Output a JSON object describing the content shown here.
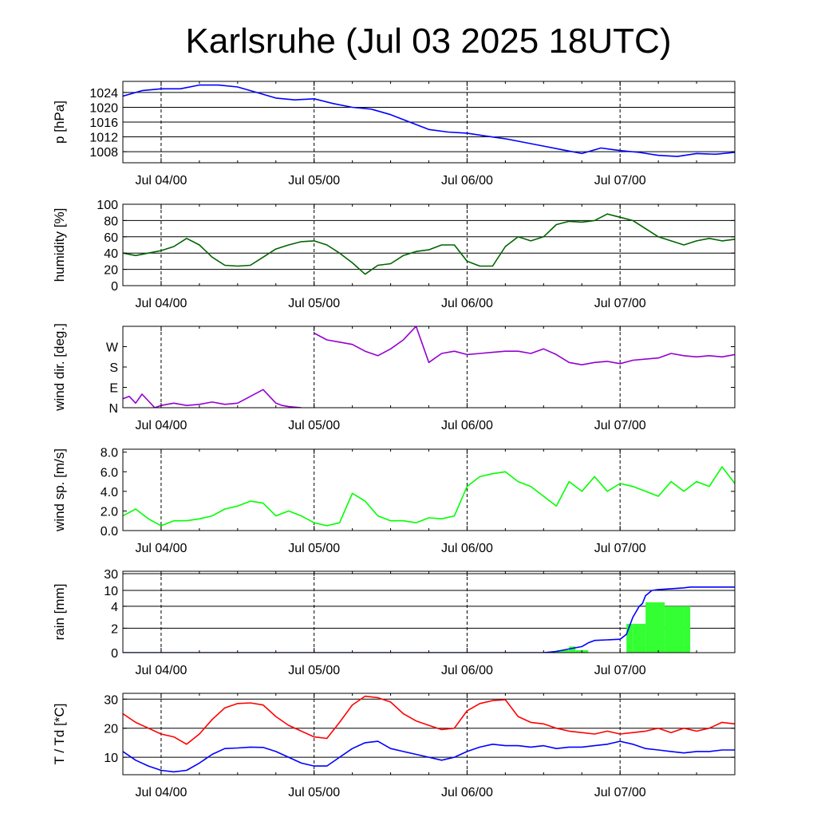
{
  "chart_data": {
    "type": "line",
    "title": "Karlsruhe (Jul 03 2025 18UTC)",
    "x_tick_labels": [
      "Jul 04/00",
      "Jul 05/00",
      "Jul 06/00",
      "Jul 07/00"
    ],
    "x_range_hours_from_jul03_18utc": [
      0,
      96
    ],
    "colors": {
      "pressure": "#0000ff",
      "humidity": "#006400",
      "wind_dir": "#9400d3",
      "wind_speed": "#00ff00",
      "rain_bar": "#33ff33",
      "rain_cum": "#0000ff",
      "temperature": "#ff0000",
      "dewpoint": "#0000ff"
    },
    "panels": [
      {
        "id": "pressure",
        "ylabel": "p [hPa]",
        "ylim": [
          1005,
          1027
        ],
        "yticks": [
          "1024",
          "1020",
          "1016",
          "1012",
          "1008"
        ],
        "ytick_values": [
          1024,
          1020,
          1016,
          1012,
          1008
        ],
        "grid": true,
        "series": [
          {
            "key": "pressure",
            "type": "line",
            "x": [
              0,
              3,
              6,
              9,
              12,
              15,
              18,
              21,
              24,
              27,
              30,
              33,
              36,
              39,
              42,
              45,
              48,
              51,
              54,
              57,
              60,
              63,
              66,
              69,
              72,
              75,
              78,
              81,
              84,
              87,
              90,
              93,
              96
            ],
            "y": [
              1023,
              1024.5,
              1025,
              1025,
              1026,
              1026,
              1025.5,
              1024,
              1022.5,
              1022,
              1022.3,
              1021,
              1020,
              1019.5,
              1018,
              1016,
              1014,
              1013.3,
              1013,
              1012.2,
              1011.5,
              1010.5,
              1009.5,
              1008.5,
              1007.5,
              1009,
              1008.3,
              1007.8,
              1007,
              1006.7,
              1007.5,
              1007.3,
              1007.8
            ]
          }
        ]
      },
      {
        "id": "humidity",
        "ylabel": "humidity [%]",
        "ylim": [
          0,
          100
        ],
        "yticks": [
          "100",
          "80",
          "60",
          "40",
          "20",
          "0"
        ],
        "ytick_values": [
          100,
          80,
          60,
          40,
          20,
          0
        ],
        "grid": true,
        "series": [
          {
            "key": "humidity",
            "type": "line",
            "x": [
              0,
              2,
              4,
              6,
              8,
              10,
              12,
              14,
              16,
              18,
              20,
              22,
              24,
              26,
              28,
              30,
              32,
              34,
              36,
              38,
              40,
              42,
              44,
              46,
              48,
              50,
              52,
              54,
              56,
              58,
              60,
              62,
              64,
              66,
              68,
              70,
              72,
              74,
              76,
              78,
              80,
              82,
              84,
              86,
              88,
              90,
              92,
              94,
              96
            ],
            "y": [
              40,
              37,
              40,
              43,
              48,
              58,
              50,
              35,
              25,
              24,
              25,
              35,
              45,
              50,
              54,
              55,
              50,
              40,
              28,
              14,
              25,
              27,
              37,
              42,
              44,
              50,
              50,
              30,
              24,
              24,
              48,
              60,
              55,
              60,
              75,
              79,
              78,
              80,
              88,
              84,
              80,
              70,
              60,
              55,
              50,
              55,
              58,
              55,
              57
            ]
          }
        ]
      },
      {
        "id": "wind_dir",
        "ylabel": "wind dir. [deg.]",
        "ylim": [
          0,
          360
        ],
        "yticks": [
          "W",
          "S",
          "E",
          "N"
        ],
        "ytick_values": [
          270,
          180,
          90,
          0
        ],
        "grid": false,
        "series": [
          {
            "key": "wind_dir",
            "type": "line",
            "x": [
              0,
              1,
              2,
              3,
              4,
              5,
              6,
              8,
              10,
              12,
              14,
              16,
              18,
              20,
              22,
              24,
              25,
              26,
              28,
              30,
              32,
              34,
              36,
              38,
              40,
              42,
              44,
              46,
              48,
              50,
              52,
              54,
              56,
              58,
              60,
              62,
              64,
              66,
              68,
              70,
              72,
              74,
              76,
              78,
              80,
              82,
              84,
              86,
              88,
              90,
              92,
              94,
              96
            ],
            "y": [
              40,
              50,
              20,
              60,
              30,
              0,
              10,
              20,
              10,
              15,
              25,
              15,
              20,
              50,
              80,
              20,
              10,
              5,
              0,
              330,
              300,
              290,
              280,
              250,
              230,
              260,
              300,
              360,
              200,
              240,
              250,
              235,
              240,
              245,
              250,
              250,
              240,
              260,
              235,
              200,
              190,
              200,
              205,
              195,
              210,
              215,
              220,
              240,
              230,
              225,
              230,
              225,
              235
            ]
          }
        ]
      },
      {
        "id": "wind_speed",
        "ylabel": "wind sp. [m/s]",
        "ylim": [
          0,
          8.3
        ],
        "yticks": [
          "8.0",
          "6.0",
          "4.0",
          "2.0",
          "0.0"
        ],
        "ytick_values": [
          8,
          6,
          4,
          2,
          0
        ],
        "grid": false,
        "series": [
          {
            "key": "wind_speed",
            "type": "line",
            "x": [
              0,
              2,
              4,
              6,
              8,
              10,
              12,
              14,
              16,
              18,
              20,
              22,
              24,
              26,
              28,
              30,
              32,
              34,
              36,
              38,
              40,
              42,
              44,
              46,
              48,
              50,
              52,
              54,
              56,
              58,
              60,
              62,
              64,
              66,
              68,
              70,
              72,
              74,
              76,
              78,
              80,
              82,
              84,
              86,
              88,
              90,
              92,
              94,
              96
            ],
            "y": [
              1.5,
              2.2,
              1.2,
              0.5,
              1.0,
              1.0,
              1.2,
              1.5,
              2.2,
              2.5,
              3.0,
              2.8,
              1.5,
              2.0,
              1.5,
              0.8,
              0.5,
              0.8,
              3.8,
              3.0,
              1.5,
              1.0,
              1.0,
              0.8,
              1.3,
              1.2,
              1.5,
              4.5,
              5.5,
              5.8,
              6.0,
              5.0,
              4.5,
              3.5,
              2.5,
              5.0,
              4.0,
              5.5,
              4.0,
              4.8,
              4.5,
              4.0,
              3.5,
              5.0,
              4.0,
              5.0,
              4.5,
              6.5,
              4.8
            ]
          }
        ]
      },
      {
        "id": "rain",
        "ylabel": "rain [mm]",
        "ylim": [
          0,
          30
        ],
        "yticks": [
          "30",
          "10",
          "4",
          "2",
          "0"
        ],
        "ytick_values": [
          30,
          10,
          4,
          2,
          0
        ],
        "grid": true,
        "scale": "custom-nonlinear",
        "series": [
          {
            "key": "rain_bar",
            "type": "bar",
            "bars": [
              {
                "x0": 68,
                "x1": 70,
                "v": 0.2
              },
              {
                "x0": 70,
                "x1": 71,
                "v": 0.5
              },
              {
                "x0": 71,
                "x1": 73,
                "v": 0.2
              },
              {
                "x0": 79,
                "x1": 80,
                "v": 2.4
              },
              {
                "x0": 80,
                "x1": 82,
                "v": 2.4
              },
              {
                "x0": 82,
                "x1": 85,
                "v": 5.5
              },
              {
                "x0": 85,
                "x1": 88,
                "v": 4.0
              },
              {
                "x0": 88,
                "x1": 89,
                "v": 4.0
              }
            ]
          },
          {
            "key": "rain_cum",
            "type": "line",
            "x": [
              0,
              66,
              68,
              70,
              72,
              73,
              74,
              78,
              79,
              80,
              81,
              81.5,
              82,
              83,
              84,
              86,
              88,
              89,
              96
            ],
            "y": [
              0,
              0,
              0.1,
              0.3,
              0.5,
              0.8,
              1.0,
              1.1,
              1.5,
              3.0,
              4.0,
              5.0,
              8.0,
              10.0,
              11.0,
              12.0,
              13.0,
              14.0,
              14.0
            ]
          }
        ]
      },
      {
        "id": "temperature",
        "ylabel": "T / Td [*C]",
        "ylim": [
          4,
          32
        ],
        "yticks": [
          "30",
          "20",
          "10"
        ],
        "ytick_values": [
          30,
          20,
          10
        ],
        "grid": true,
        "series": [
          {
            "key": "temperature",
            "type": "line",
            "x": [
              0,
              2,
              4,
              6,
              8,
              10,
              12,
              14,
              16,
              18,
              20,
              22,
              24,
              26,
              28,
              30,
              32,
              34,
              36,
              38,
              40,
              42,
              44,
              46,
              48,
              50,
              52,
              54,
              56,
              58,
              60,
              62,
              64,
              66,
              68,
              70,
              72,
              74,
              76,
              78,
              80,
              82,
              84,
              86,
              88,
              90,
              92,
              94,
              96
            ],
            "y": [
              25,
              22,
              20,
              18,
              17,
              14.5,
              18,
              23,
              27,
              28.5,
              28.7,
              28,
              24,
              21,
              19,
              17,
              16.5,
              22,
              28,
              31,
              30.5,
              29,
              25,
              22.5,
              21,
              19.5,
              20,
              26,
              28.5,
              29.5,
              29.8,
              24,
              22,
              21.5,
              20,
              19,
              18.5,
              18,
              19,
              18,
              18.5,
              19,
              20,
              18.5,
              20,
              19,
              20,
              22,
              21.5
            ]
          },
          {
            "key": "dewpoint",
            "type": "line",
            "x": [
              0,
              2,
              4,
              6,
              8,
              10,
              12,
              14,
              16,
              18,
              20,
              22,
              24,
              26,
              28,
              30,
              32,
              34,
              36,
              38,
              40,
              42,
              44,
              46,
              48,
              50,
              52,
              54,
              56,
              58,
              60,
              62,
              64,
              66,
              68,
              70,
              72,
              74,
              76,
              78,
              80,
              82,
              84,
              86,
              88,
              90,
              92,
              94,
              96
            ],
            "y": [
              12,
              9,
              7,
              5.5,
              5,
              5.5,
              8,
              11,
              13,
              13.2,
              13.5,
              13.4,
              12,
              10,
              8,
              7,
              7,
              10,
              13,
              15,
              15.5,
              13,
              12,
              11,
              10,
              9,
              10,
              12,
              13.5,
              14.5,
              14,
              14,
              13.5,
              14,
              13,
              13.5,
              13.5,
              14,
              14.5,
              15.5,
              14.5,
              13,
              12.5,
              12,
              11.5,
              12,
              12,
              12.5,
              12.5
            ]
          }
        ]
      }
    ]
  }
}
